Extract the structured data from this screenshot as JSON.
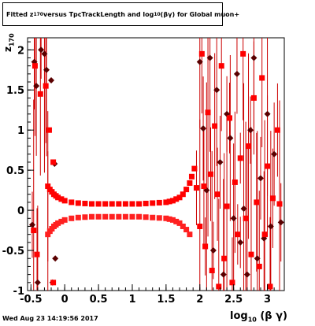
{
  "title_parts": {
    "a": "Fitted  z",
    "b": "170",
    "c": " versus TpcTrackLength and log",
    "d": "10",
    "e": " (βγ) for Global muon+"
  },
  "ylabel": {
    "a": "z",
    "b": "170"
  },
  "xlabel": {
    "a": "log",
    "b": "10",
    "c": " (β γ)"
  },
  "timestamp": "Wed Aug 23 14:19:56 2017",
  "chart_data": {
    "type": "scatter",
    "title": "Fitted z170 versus TpcTrackLength and log10 (βγ) for Global muon+",
    "xlabel": "log10 (β γ)",
    "ylabel": "z170",
    "xlim": [
      -0.55,
      3.25
    ],
    "ylim": [
      -1.0,
      2.15
    ],
    "xticks": [
      "-0.5",
      "0",
      "0.5",
      "1",
      "1.5",
      "2",
      "2.5",
      "3"
    ],
    "yticks": [
      "-1",
      "-0.5",
      "0",
      "0.5",
      "1",
      "1.5",
      "2"
    ],
    "colors": {
      "upper": "#ff0000",
      "lower": "#ff2020",
      "dark": "#5a0000",
      "err": "#cc0000"
    },
    "series": [
      {
        "name": "",
        "marker": "square",
        "color": "#ff0000",
        "points": [
          [
            -0.25,
            0.3
          ],
          [
            -0.22,
            0.26
          ],
          [
            -0.19,
            0.23
          ],
          [
            -0.16,
            0.2
          ],
          [
            -0.13,
            0.18
          ],
          [
            -0.1,
            0.16
          ],
          [
            -0.05,
            0.14
          ],
          [
            0.0,
            0.12
          ],
          [
            0.1,
            0.1
          ],
          [
            0.2,
            0.09
          ],
          [
            0.3,
            0.085
          ],
          [
            0.4,
            0.08
          ],
          [
            0.5,
            0.08
          ],
          [
            0.6,
            0.08
          ],
          [
            0.7,
            0.08
          ],
          [
            0.8,
            0.08
          ],
          [
            0.9,
            0.08
          ],
          [
            1.0,
            0.08
          ],
          [
            1.1,
            0.08
          ],
          [
            1.2,
            0.085
          ],
          [
            1.3,
            0.09
          ],
          [
            1.4,
            0.095
          ],
          [
            1.5,
            0.1
          ],
          [
            1.55,
            0.11
          ],
          [
            1.6,
            0.12
          ],
          [
            1.65,
            0.14
          ],
          [
            1.7,
            0.16
          ],
          [
            1.75,
            0.2
          ],
          [
            1.8,
            0.26
          ],
          [
            1.85,
            0.34
          ],
          [
            1.88,
            0.42
          ],
          [
            1.92,
            0.52
          ]
        ]
      },
      {
        "name": "",
        "marker": "square",
        "color": "#ff2020",
        "points": [
          [
            -0.25,
            -0.3
          ],
          [
            -0.22,
            -0.26
          ],
          [
            -0.19,
            -0.23
          ],
          [
            -0.16,
            -0.2
          ],
          [
            -0.13,
            -0.18
          ],
          [
            -0.1,
            -0.16
          ],
          [
            -0.05,
            -0.14
          ],
          [
            0.0,
            -0.12
          ],
          [
            0.1,
            -0.1
          ],
          [
            0.2,
            -0.09
          ],
          [
            0.3,
            -0.085
          ],
          [
            0.4,
            -0.08
          ],
          [
            0.5,
            -0.08
          ],
          [
            0.6,
            -0.08
          ],
          [
            0.7,
            -0.08
          ],
          [
            0.8,
            -0.08
          ],
          [
            0.9,
            -0.08
          ],
          [
            1.0,
            -0.08
          ],
          [
            1.1,
            -0.08
          ],
          [
            1.2,
            -0.085
          ],
          [
            1.3,
            -0.09
          ],
          [
            1.4,
            -0.095
          ],
          [
            1.5,
            -0.1
          ],
          [
            1.55,
            -0.11
          ],
          [
            1.6,
            -0.12
          ],
          [
            1.65,
            -0.14
          ],
          [
            1.7,
            -0.16
          ],
          [
            1.75,
            -0.2
          ],
          [
            1.8,
            -0.24
          ],
          [
            1.85,
            -0.3
          ]
        ]
      },
      {
        "name": "",
        "marker": "diamond",
        "color": "#5a0000",
        "points": [
          [
            -0.48,
            -0.18
          ],
          [
            -0.45,
            1.85
          ],
          [
            -0.42,
            1.55
          ],
          [
            -0.4,
            -0.9
          ],
          [
            -0.35,
            2.0
          ],
          [
            -0.3,
            1.95
          ],
          [
            -0.27,
            1.75
          ],
          [
            -0.2,
            1.62
          ],
          [
            -0.18,
            -0.9
          ],
          [
            -0.15,
            0.58
          ],
          [
            -0.14,
            -0.6
          ],
          [
            2.0,
            1.85
          ],
          [
            2.05,
            1.02
          ],
          [
            2.1,
            0.25
          ],
          [
            2.15,
            1.9
          ],
          [
            2.2,
            -0.5
          ],
          [
            2.25,
            1.5
          ],
          [
            2.3,
            0.6
          ],
          [
            2.35,
            -0.8
          ],
          [
            2.4,
            1.2
          ],
          [
            2.45,
            0.9
          ],
          [
            2.5,
            -0.1
          ],
          [
            2.55,
            1.7
          ],
          [
            2.6,
            -0.4
          ],
          [
            2.65,
            0.02
          ],
          [
            2.7,
            -0.8
          ],
          [
            2.75,
            1.0
          ],
          [
            2.8,
            1.9
          ],
          [
            2.85,
            -0.6
          ],
          [
            2.9,
            0.4
          ],
          [
            2.95,
            -0.35
          ],
          [
            3.0,
            1.2
          ],
          [
            3.05,
            -0.2
          ],
          [
            3.1,
            0.7
          ],
          [
            3.2,
            -0.15
          ]
        ]
      },
      {
        "name": "",
        "marker": "square",
        "color": "#ff0000",
        "points": [
          [
            -0.46,
            -0.25
          ],
          [
            -0.44,
            1.8
          ],
          [
            -0.41,
            -0.55
          ],
          [
            -0.36,
            1.45
          ],
          [
            -0.28,
            1.55
          ],
          [
            -0.23,
            1.0
          ],
          [
            -0.17,
            0.6
          ],
          [
            -0.17,
            -0.9
          ],
          [
            1.95,
            0.28
          ],
          [
            2.0,
            -0.2
          ],
          [
            2.03,
            1.95
          ],
          [
            2.06,
            0.3
          ],
          [
            2.08,
            -0.45
          ],
          [
            2.12,
            1.22
          ],
          [
            2.16,
            0.45
          ],
          [
            2.18,
            -0.75
          ],
          [
            2.22,
            1.05
          ],
          [
            2.26,
            0.2
          ],
          [
            2.28,
            -0.95
          ],
          [
            2.32,
            1.8
          ],
          [
            2.36,
            -0.6
          ],
          [
            2.4,
            0.05
          ],
          [
            2.44,
            1.15
          ],
          [
            2.48,
            -0.9
          ],
          [
            2.52,
            0.35
          ],
          [
            2.56,
            -0.3
          ],
          [
            2.6,
            0.65
          ],
          [
            2.64,
            1.95
          ],
          [
            2.68,
            -0.1
          ],
          [
            2.72,
            0.8
          ],
          [
            2.76,
            -0.55
          ],
          [
            2.8,
            1.4
          ],
          [
            2.84,
            0.1
          ],
          [
            2.88,
            -0.7
          ],
          [
            2.92,
            1.65
          ],
          [
            2.96,
            -0.3
          ],
          [
            3.0,
            0.55
          ],
          [
            3.04,
            -0.95
          ],
          [
            3.08,
            0.15
          ],
          [
            3.15,
            1.0
          ],
          [
            3.18,
            0.08
          ]
        ]
      }
    ]
  }
}
